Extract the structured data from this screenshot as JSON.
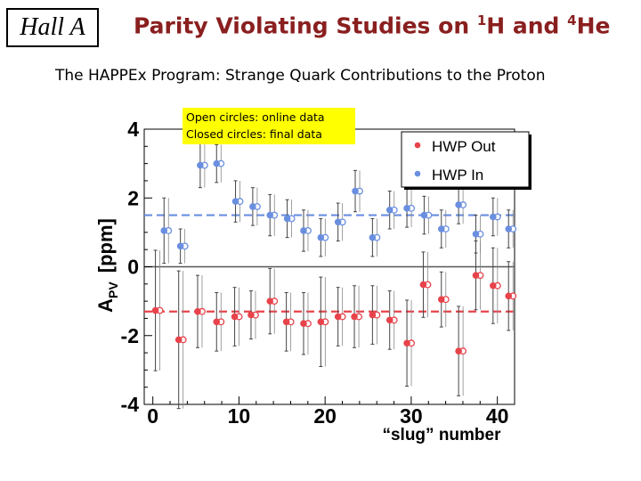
{
  "header": {
    "badge": "Hall A",
    "title_main": "Parity Violating Studies on ",
    "title_sup1": "1",
    "title_mid": "H and ",
    "title_sup2": "4",
    "title_end": "He"
  },
  "subtitle": "The HAPPEx Program: Strange Quark Contributions to the Proton",
  "note": {
    "line1": "Open circles: online data",
    "line2": "Closed circles: final data"
  },
  "chart_data": {
    "type": "scatter",
    "title": "",
    "xlabel": "“slug” number",
    "ylabel_main": "A",
    "ylabel_sub": "PV",
    "ylabel_unit": "[ppm]",
    "xlim": [
      -1,
      42
    ],
    "ylim": [
      -4,
      4
    ],
    "x_ticks": [
      "0",
      "10",
      "20",
      "30",
      "40"
    ],
    "y_ticks": [
      "-4",
      "-2",
      "0",
      "2",
      "4"
    ],
    "legend_position": "top-right",
    "grid": false,
    "series": [
      {
        "name": "HWP Out",
        "color": "#e8434b",
        "mean": -1.3,
        "points": [
          {
            "x": 0.3,
            "y": -1.27,
            "err": 1.75
          },
          {
            "x": 3,
            "y": -2.12,
            "err": 2.0
          },
          {
            "x": 5.2,
            "y": -1.3,
            "err": 1.05
          },
          {
            "x": 7.4,
            "y": -1.6,
            "err": 0.85
          },
          {
            "x": 9.5,
            "y": -1.45,
            "err": 0.85
          },
          {
            "x": 11.4,
            "y": -1.4,
            "err": 0.7
          },
          {
            "x": 13.6,
            "y": -1.0,
            "err": 0.95
          },
          {
            "x": 15.5,
            "y": -1.6,
            "err": 0.85
          },
          {
            "x": 17.5,
            "y": -1.65,
            "err": 0.9
          },
          {
            "x": 19.5,
            "y": -1.6,
            "err": 1.3
          },
          {
            "x": 21.5,
            "y": -1.45,
            "err": 0.85
          },
          {
            "x": 23.4,
            "y": -1.45,
            "err": 0.9
          },
          {
            "x": 25.5,
            "y": -1.4,
            "err": 0.85
          },
          {
            "x": 27.5,
            "y": -1.55,
            "err": 0.85
          },
          {
            "x": 29.5,
            "y": -2.22,
            "err": 1.25
          },
          {
            "x": 31.4,
            "y": -0.52,
            "err": 0.95
          },
          {
            "x": 33.5,
            "y": -0.95,
            "err": 0.8
          },
          {
            "x": 35.5,
            "y": -2.45,
            "err": 1.3
          },
          {
            "x": 37.5,
            "y": -0.25,
            "err": 1.0
          },
          {
            "x": 39.5,
            "y": -0.55,
            "err": 1.1
          },
          {
            "x": 41.3,
            "y": -0.85,
            "err": 1.0
          }
        ]
      },
      {
        "name": "HWP In",
        "color": "#6a8fe0",
        "mean": 1.5,
        "points": [
          {
            "x": 1.3,
            "y": 1.05,
            "err": 0.95
          },
          {
            "x": 3.2,
            "y": 0.6,
            "err": 0.5
          },
          {
            "x": 5.5,
            "y": 2.95,
            "err": 0.65
          },
          {
            "x": 7.4,
            "y": 3.0,
            "err": 0.55
          },
          {
            "x": 9.6,
            "y": 1.9,
            "err": 0.6
          },
          {
            "x": 11.6,
            "y": 1.75,
            "err": 0.55
          },
          {
            "x": 13.6,
            "y": 1.5,
            "err": 0.6
          },
          {
            "x": 15.6,
            "y": 1.4,
            "err": 0.55
          },
          {
            "x": 17.5,
            "y": 1.05,
            "err": 0.6
          },
          {
            "x": 19.5,
            "y": 0.85,
            "err": 0.55
          },
          {
            "x": 21.5,
            "y": 1.3,
            "err": 0.55
          },
          {
            "x": 23.5,
            "y": 2.2,
            "err": 0.6
          },
          {
            "x": 25.5,
            "y": 0.85,
            "err": 0.55
          },
          {
            "x": 27.5,
            "y": 1.65,
            "err": 0.55
          },
          {
            "x": 29.5,
            "y": 1.7,
            "err": 0.55
          },
          {
            "x": 31.5,
            "y": 1.5,
            "err": 0.55
          },
          {
            "x": 33.5,
            "y": 1.1,
            "err": 0.55
          },
          {
            "x": 35.5,
            "y": 1.8,
            "err": 0.55
          },
          {
            "x": 37.5,
            "y": 0.95,
            "err": 0.55
          },
          {
            "x": 39.5,
            "y": 1.45,
            "err": 0.55
          },
          {
            "x": 41.3,
            "y": 1.1,
            "err": 0.55
          }
        ]
      }
    ]
  }
}
